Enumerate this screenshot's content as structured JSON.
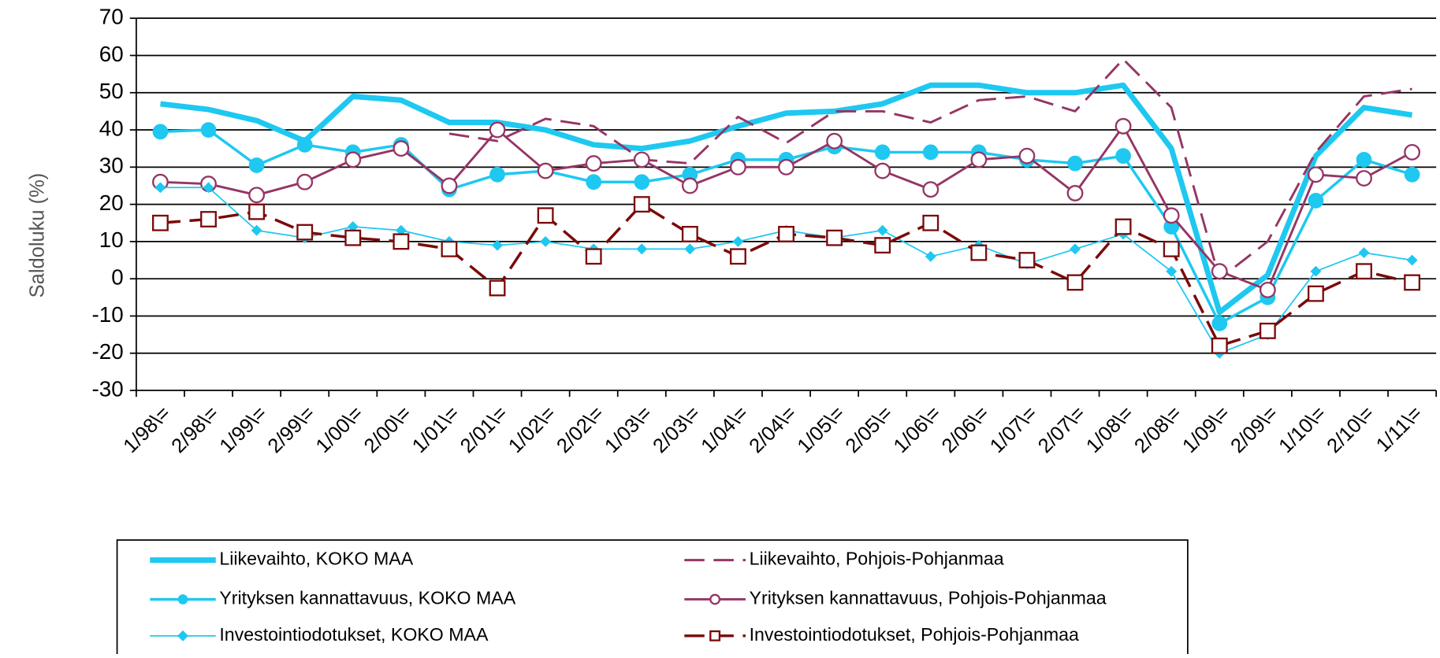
{
  "chart_data": {
    "type": "line",
    "ylabel": "Saldoluku (%)",
    "categories": [
      "1/98\\=",
      "2/98\\=",
      "1/99\\=",
      "2/99\\=",
      "1/00\\=",
      "2/00\\=",
      "1/01\\=",
      "2/01\\=",
      "1/02\\=",
      "2/02\\=",
      "1/03\\=",
      "2/03\\=",
      "1/04\\=",
      "2/04\\=",
      "1/05\\=",
      "2/05\\=",
      "1/06\\=",
      "2/06\\=",
      "1/07\\=",
      "2/07\\=",
      "1/08\\=",
      "2/08\\=",
      "1/09\\=",
      "2/09\\=",
      "1/10\\=",
      "2/10\\=",
      "1/11\\="
    ],
    "ylim": [
      -30,
      70
    ],
    "yticks": [
      -30,
      -20,
      -10,
      0,
      10,
      20,
      30,
      40,
      50,
      60,
      70
    ],
    "grid": true,
    "series": [
      {
        "name": "Liikevaihto, KOKO MAA",
        "color": "#1ec8f0",
        "line_width": 6,
        "dashed": false,
        "marker": "none",
        "values": [
          47,
          45.5,
          42.5,
          37,
          49,
          48,
          42,
          42,
          40,
          36,
          35,
          37,
          41,
          44.5,
          45,
          47,
          52,
          52,
          50,
          50,
          52,
          35,
          -9,
          1,
          33,
          46,
          44
        ]
      },
      {
        "name": "Liikevaihto, Pohjois-Pohjanmaa",
        "color": "#953565",
        "line_width": 2.5,
        "dashed": true,
        "marker": "none",
        "values": [
          null,
          null,
          null,
          null,
          null,
          null,
          39,
          37,
          43,
          41,
          32,
          31,
          43.5,
          36.5,
          45,
          45,
          42,
          48,
          49,
          45,
          59,
          46,
          0,
          10,
          34,
          49,
          51
        ]
      },
      {
        "name": "Yrityksen kannattavuus, KOKO MAA",
        "color": "#1ec8f0",
        "line_width": 3,
        "dashed": false,
        "marker": "filled-circle",
        "values": [
          39.5,
          40,
          30.5,
          36,
          34,
          36,
          24,
          28,
          29,
          26,
          26,
          28,
          32,
          32,
          35.5,
          34,
          34,
          34,
          32,
          31,
          33,
          14,
          -12,
          -5,
          21,
          32,
          28
        ]
      },
      {
        "name": "Yrityksen kannattavuus, Pohjois-Pohjanmaa",
        "color": "#953565",
        "line_width": 2.5,
        "dashed": false,
        "marker": "open-circle",
        "values": [
          26,
          25.5,
          22.5,
          26,
          32,
          35,
          25,
          40,
          29,
          31,
          32,
          25,
          30,
          30,
          37,
          29,
          24,
          32,
          33,
          23,
          41,
          17,
          2,
          -3,
          28,
          27,
          34
        ]
      },
      {
        "name": "Investointiodotukset, KOKO MAA",
        "color": "#1ec8f0",
        "line_width": 1.5,
        "dashed": false,
        "marker": "diamond",
        "values": [
          24.5,
          24.5,
          13,
          11,
          14,
          13,
          10,
          9,
          10,
          8,
          8,
          8,
          10,
          13,
          11,
          13,
          6,
          9,
          4,
          8,
          12,
          2,
          -20,
          -15,
          2,
          7,
          5
        ]
      },
      {
        "name": "Investointiodotukset, Pohjois-Pohjanmaa",
        "color": "#7a0a0a",
        "line_width": 3,
        "dashed": true,
        "marker": "open-square",
        "values": [
          15,
          16,
          18,
          12.5,
          11,
          10,
          8,
          -2.5,
          17,
          6,
          20,
          12,
          6,
          12,
          11,
          9,
          15,
          7,
          5,
          -1,
          14,
          8,
          -18,
          -14,
          -4,
          2,
          -1
        ]
      }
    ]
  }
}
